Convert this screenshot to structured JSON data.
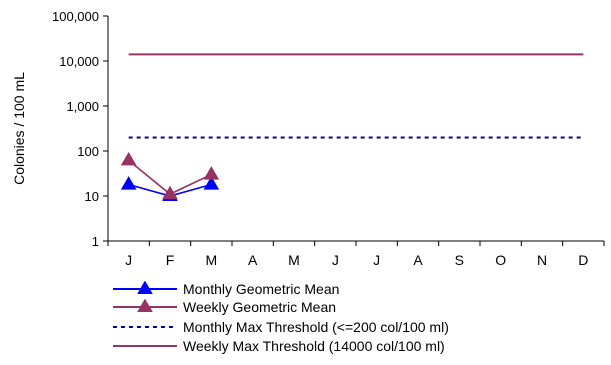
{
  "chart_data": {
    "type": "line",
    "ylabel": "Colonies / 100 mL",
    "xlabel": "",
    "y_scale": "log",
    "ylim": [
      1,
      100000
    ],
    "y_ticks": [
      {
        "value": 1,
        "label": "1"
      },
      {
        "value": 10,
        "label": "10"
      },
      {
        "value": 100,
        "label": "100"
      },
      {
        "value": 1000,
        "label": "1,000"
      },
      {
        "value": 10000,
        "label": "10,000"
      },
      {
        "value": 100000,
        "label": "100,000"
      }
    ],
    "grid": false,
    "legend_position": "bottom",
    "categories": [
      "J",
      "F",
      "M",
      "A",
      "M",
      "J",
      "J",
      "A",
      "S",
      "O",
      "N",
      "D"
    ],
    "series": [
      {
        "name": "Monthly Geometric Mean",
        "color": "#0000ff",
        "marker": "triangle",
        "line_style": "solid",
        "values": [
          18,
          10,
          18,
          null,
          null,
          null,
          null,
          null,
          null,
          null,
          null,
          null
        ]
      },
      {
        "name": "Weekly Geometric Mean",
        "color": "#993366",
        "marker": "triangle",
        "line_style": "solid",
        "values": [
          62,
          11,
          30,
          null,
          null,
          null,
          null,
          null,
          null,
          null,
          null,
          null
        ]
      },
      {
        "name": "Monthly Max Threshold (<=200 col/100 ml)",
        "color": "#000099",
        "marker": "none",
        "line_style": "dashed",
        "values": [
          200,
          200,
          200,
          200,
          200,
          200,
          200,
          200,
          200,
          200,
          200,
          200
        ]
      },
      {
        "name": "Weekly Max Threshold (14000 col/100 ml)",
        "color": "#993366",
        "marker": "none",
        "line_style": "solid",
        "values": [
          14000,
          14000,
          14000,
          14000,
          14000,
          14000,
          14000,
          14000,
          14000,
          14000,
          14000,
          14000
        ]
      }
    ]
  }
}
